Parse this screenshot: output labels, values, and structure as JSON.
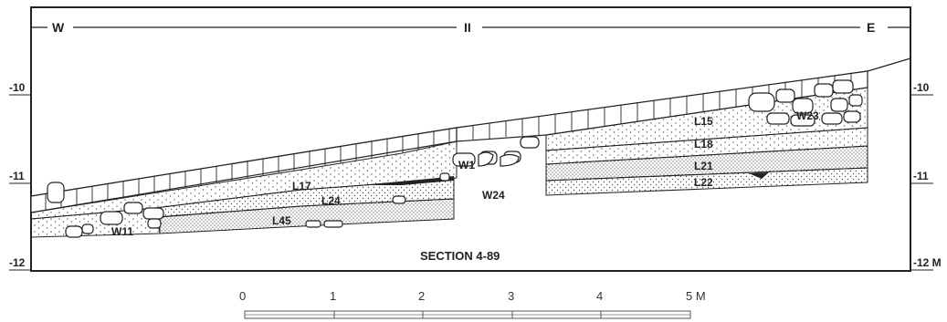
{
  "section": {
    "title": "SECTION 4-89",
    "compass": {
      "west": "W",
      "east": "E",
      "center": "II"
    },
    "depths": {
      "left": [
        "-10",
        "-11",
        "-12"
      ],
      "right": [
        "-10",
        "-11",
        "-12 M"
      ]
    }
  },
  "layers": {
    "L15": "L15",
    "L17": "L17",
    "L18": "L18",
    "L21": "L21",
    "L22": "L22",
    "L24": "L24",
    "L45": "L45"
  },
  "walls": {
    "W1": "W1",
    "W11": "W11",
    "W23": "W23",
    "W24": "W24"
  },
  "scale": {
    "ticks": [
      "0",
      "1",
      "2",
      "3",
      "4",
      "5 M"
    ]
  },
  "colors": {
    "ink": "#222222",
    "paper": "#ffffff",
    "fill_dots": "#555555"
  }
}
